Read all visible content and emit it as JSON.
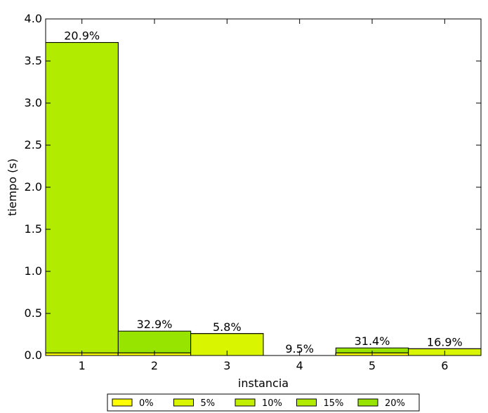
{
  "chart_data": {
    "type": "bar",
    "xlabel": "instancia",
    "ylabel": "tiempo (s)",
    "ylim": [
      0,
      4.0
    ],
    "yticks": [
      "0.0",
      "0.5",
      "1.0",
      "1.5",
      "2.0",
      "2.5",
      "3.0",
      "3.5",
      "4.0"
    ],
    "categories": [
      "1",
      "2",
      "3",
      "4",
      "5",
      "6"
    ],
    "grid": false,
    "legend_placement": "bottom-center, below axes",
    "series": [
      {
        "name": "0%",
        "color": "#ffff00",
        "values": [
          0.03,
          0.03,
          0.0,
          0.0,
          0.03,
          0.0
        ]
      },
      {
        "name": "5%",
        "color": "#d9f500",
        "values": [
          0.03,
          0.03,
          0.26,
          0.0,
          0.03,
          0.08
        ]
      },
      {
        "name": "10%",
        "color": "#c2ee00",
        "values": [
          0.03,
          0.03,
          0.26,
          0.0,
          0.03,
          0.08
        ]
      },
      {
        "name": "15%",
        "color": "#b1ec00",
        "values": [
          3.72,
          0.03,
          0.26,
          0.0,
          0.03,
          0.08
        ]
      },
      {
        "name": "20%",
        "color": "#96e400",
        "values": [
          3.72,
          0.29,
          0.26,
          0.0,
          0.09,
          0.08
        ]
      }
    ],
    "top_series_per_category": [
      3,
      4,
      1,
      0,
      4,
      1
    ],
    "annotations": [
      "20.9%",
      "32.9%",
      "5.8%",
      "9.5%",
      "31.4%",
      "16.9%"
    ]
  }
}
